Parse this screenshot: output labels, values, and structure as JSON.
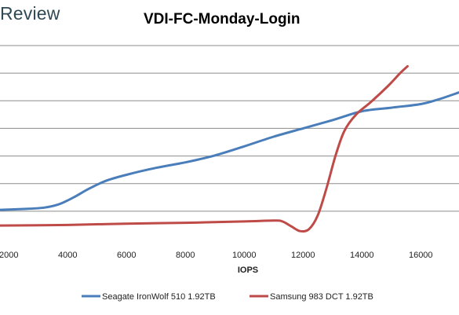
{
  "brand": "Review",
  "chart_data": {
    "type": "line",
    "title": "VDI-FC-Monday-Login",
    "xlabel": "IOPS",
    "ylabel": "",
    "xlim": [
      1700,
      17300
    ],
    "ylim": [
      0,
      7
    ],
    "x_ticks": [
      "2000",
      "4000",
      "6000",
      "8000",
      "10000",
      "12000",
      "14000",
      "16000"
    ],
    "x_tick_values": [
      2000,
      4000,
      6000,
      8000,
      10000,
      12000,
      14000,
      16000
    ],
    "grid": true,
    "legend": "bottom",
    "series": [
      {
        "name": "Seagate IronWolf 510 1.92TB",
        "color": "#4a7ebb",
        "points": [
          [
            1700,
            1.05
          ],
          [
            2500,
            1.08
          ],
          [
            3200,
            1.13
          ],
          [
            3700,
            1.25
          ],
          [
            4200,
            1.5
          ],
          [
            4700,
            1.8
          ],
          [
            5300,
            2.1
          ],
          [
            6000,
            2.32
          ],
          [
            7000,
            2.57
          ],
          [
            8000,
            2.77
          ],
          [
            9000,
            3.02
          ],
          [
            10000,
            3.35
          ],
          [
            11000,
            3.7
          ],
          [
            12000,
            4.0
          ],
          [
            13000,
            4.3
          ],
          [
            14000,
            4.62
          ],
          [
            15000,
            4.75
          ],
          [
            16000,
            4.88
          ],
          [
            16600,
            5.05
          ],
          [
            17300,
            5.3
          ]
        ]
      },
      {
        "name": "Samsung 983 DCT 1.92TB",
        "color": "#be4b48",
        "points": [
          [
            1700,
            0.48
          ],
          [
            4000,
            0.5
          ],
          [
            6000,
            0.55
          ],
          [
            8000,
            0.58
          ],
          [
            10000,
            0.63
          ],
          [
            11000,
            0.66
          ],
          [
            11300,
            0.63
          ],
          [
            11600,
            0.45
          ],
          [
            11900,
            0.28
          ],
          [
            12200,
            0.35
          ],
          [
            12500,
            0.85
          ],
          [
            12800,
            1.85
          ],
          [
            13100,
            3.0
          ],
          [
            13400,
            3.9
          ],
          [
            13800,
            4.5
          ],
          [
            14300,
            4.95
          ],
          [
            14900,
            5.55
          ],
          [
            15300,
            6.0
          ],
          [
            15550,
            6.25
          ]
        ]
      }
    ]
  }
}
